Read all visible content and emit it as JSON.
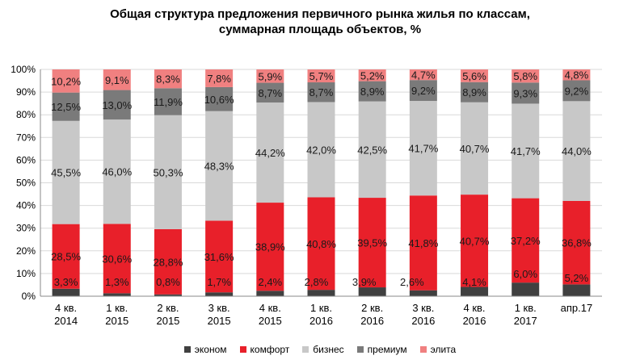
{
  "chart_data": {
    "type": "bar",
    "stacked": true,
    "title": [
      "Общая структура  предложения первичного рынка жилья по классам,",
      "суммарная площадь объектов, %"
    ],
    "ylim": [
      0,
      100
    ],
    "yticks": [
      "0%",
      "10%",
      "20%",
      "30%",
      "40%",
      "50%",
      "60%",
      "70%",
      "80%",
      "90%",
      "100%"
    ],
    "grid": true,
    "legend_position": "bottom",
    "categories": [
      [
        "4 кв.",
        "2014"
      ],
      [
        "1 кв.",
        "2015"
      ],
      [
        "2 кв.",
        "2015"
      ],
      [
        "3 кв.",
        "2015"
      ],
      [
        "4 кв.",
        "2015"
      ],
      [
        "1 кв.",
        "2016"
      ],
      [
        "2 кв.",
        "2016"
      ],
      [
        "3 кв.",
        "2016"
      ],
      [
        "4 кв.",
        "2016"
      ],
      [
        "1 кв.",
        "2017"
      ],
      [
        "апр.17"
      ]
    ],
    "series": [
      {
        "name": "эконом",
        "color": "#404040",
        "values": [
          3.3,
          1.3,
          0.8,
          1.7,
          2.4,
          2.8,
          3.9,
          2.6,
          4.1,
          6.0,
          5.2
        ],
        "labels": [
          "3,3%",
          "1,3%",
          "0,8%",
          "1,7%",
          "2,4%",
          "2,8%",
          "3,9%",
          "2,6%",
          "4,1%",
          "6,0%",
          "5,2%"
        ]
      },
      {
        "name": "комфорт",
        "color": "#e8202a",
        "values": [
          28.5,
          30.6,
          28.8,
          31.6,
          38.9,
          40.8,
          39.5,
          41.8,
          40.7,
          37.2,
          36.8
        ],
        "labels": [
          "28,5%",
          "30,6%",
          "28,8%",
          "31,6%",
          "38,9%",
          "40,8%",
          "39,5%",
          "41,8%",
          "40,7%",
          "37,2%",
          "36,8%"
        ]
      },
      {
        "name": "бизнес",
        "color": "#c8c8c8",
        "values": [
          45.5,
          46.0,
          50.3,
          48.3,
          44.2,
          42.0,
          42.5,
          41.7,
          40.7,
          41.7,
          44.0
        ],
        "labels": [
          "45,5%",
          "46,0%",
          "50,3%",
          "48,3%",
          "44,2%",
          "42,0%",
          "42,5%",
          "41,7%",
          "40,7%",
          "41,7%",
          "44,0%"
        ]
      },
      {
        "name": "премиум",
        "color": "#7a7a7a",
        "values": [
          12.5,
          13.0,
          11.9,
          10.6,
          8.7,
          8.7,
          8.9,
          9.2,
          8.9,
          9.3,
          9.2
        ],
        "labels": [
          "12,5%",
          "13,0%",
          "11,9%",
          "10,6%",
          "8,7%",
          "8,7%",
          "8,9%",
          "9,2%",
          "8,9%",
          "9,3%",
          "9,2%"
        ]
      },
      {
        "name": "элита",
        "color": "#f08080",
        "values": [
          10.2,
          9.1,
          8.3,
          7.8,
          5.9,
          5.7,
          5.2,
          4.7,
          5.6,
          5.8,
          4.8
        ],
        "labels": [
          "10,2%",
          "9,1%",
          "8,3%",
          "7,8%",
          "5,9%",
          "5,7%",
          "5,2%",
          "4,7%",
          "5,6%",
          "5,8%",
          "4,8%"
        ]
      }
    ]
  }
}
